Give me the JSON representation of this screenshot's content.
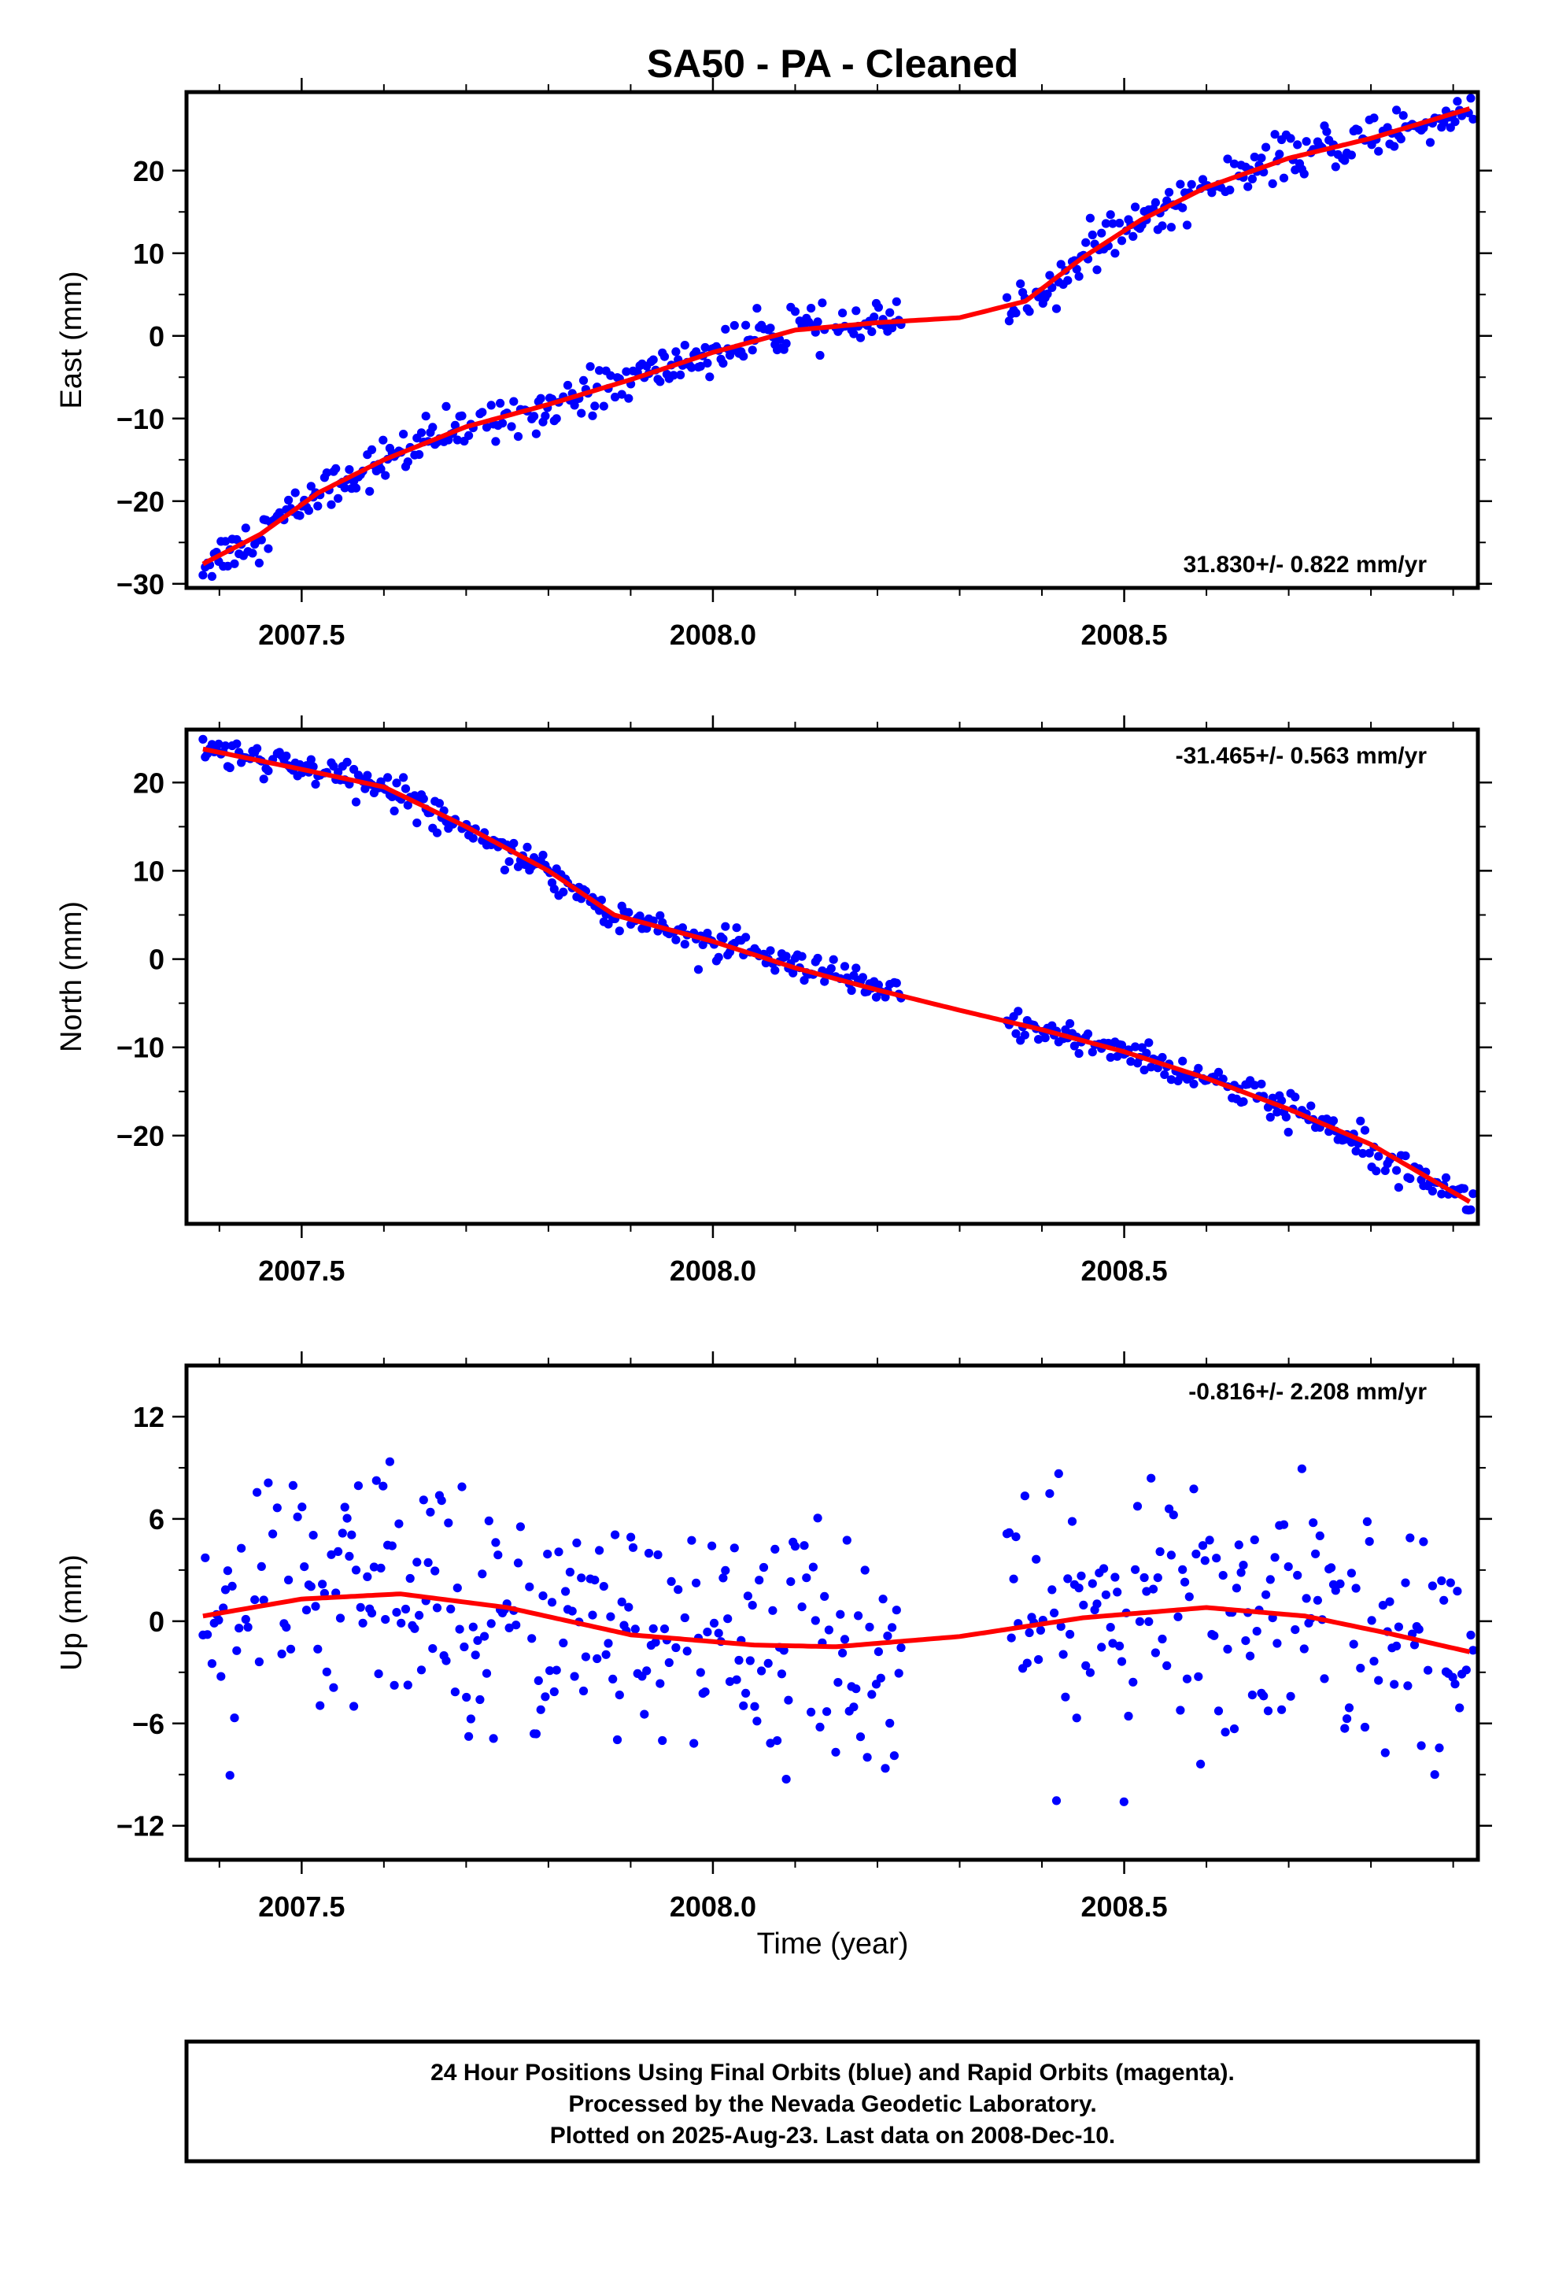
{
  "chart_data": {
    "title": "SA50  - PA - Cleaned",
    "type": "scatter",
    "xlabel": "Time (year)",
    "xlim": [
      2007.36,
      2008.93
    ],
    "xticks": [
      2007.5,
      2008.0,
      2008.5
    ],
    "xtick_labels": [
      "2007.5",
      "2008.0",
      "2008.5"
    ],
    "panels": [
      {
        "name": "east",
        "ylabel": "East (mm)",
        "ylim": [
          -30.5,
          29.5
        ],
        "yticks": [
          -30,
          -20,
          -10,
          0,
          10,
          20
        ],
        "ytick_labels": [
          "−30",
          "−20",
          "−10",
          "0",
          "10",
          "20"
        ],
        "rate_text": "31.830+/- 0.822 mm/yr",
        "rate_position": "bottom-right",
        "fit_x": [
          2007.38,
          2007.45,
          2007.52,
          2007.6,
          2007.7,
          2007.8,
          2007.9,
          2008.0,
          2008.1,
          2008.2,
          2008.3,
          2008.38,
          2008.45,
          2008.52,
          2008.6,
          2008.7,
          2008.8,
          2008.92
        ],
        "fit_y": [
          -27.6,
          -24,
          -19,
          -15,
          -11,
          -8.3,
          -5.3,
          -2,
          0.7,
          1.6,
          2.2,
          4.2,
          9.5,
          14,
          18,
          21.5,
          23.9,
          27.5
        ],
        "point_noise": 1.3,
        "gaps": [
          [
            2008.23,
            2008.355
          ]
        ]
      },
      {
        "name": "north",
        "ylabel": "North (mm)",
        "ylim": [
          -30,
          26
        ],
        "yticks": [
          -20,
          -10,
          0,
          10,
          20
        ],
        "ytick_labels": [
          "−20",
          "−10",
          "0",
          "10",
          "20"
        ],
        "rate_text": "-31.465+/- 0.563 mm/yr",
        "rate_position": "top-right",
        "fit_x": [
          2007.38,
          2007.5,
          2007.6,
          2007.7,
          2007.8,
          2007.88,
          2008.0,
          2008.1,
          2008.2,
          2008.3,
          2008.4,
          2008.5,
          2008.6,
          2008.7,
          2008.8,
          2008.92
        ],
        "fit_y": [
          23.8,
          21.5,
          19.5,
          15,
          10,
          5,
          2,
          -1,
          -3.5,
          -5.8,
          -8,
          -10.5,
          -13.5,
          -17,
          -21,
          -27.5
        ],
        "point_noise": 0.9,
        "gaps": [
          [
            2008.23,
            2008.355
          ]
        ]
      },
      {
        "name": "up",
        "ylabel": "Up (mm)",
        "ylim": [
          -14,
          15
        ],
        "yticks": [
          -12,
          -6,
          0,
          6,
          12
        ],
        "ytick_labels": [
          "−12",
          "−6",
          "0",
          "6",
          "12"
        ],
        "rate_text": "-0.816+/- 2.208 mm/yr",
        "rate_position": "top-right",
        "fit_x": [
          2007.38,
          2007.5,
          2007.62,
          2007.75,
          2007.9,
          2008.05,
          2008.15,
          2008.3,
          2008.45,
          2008.6,
          2008.72,
          2008.82,
          2008.92
        ],
        "fit_y": [
          0.3,
          1.3,
          1.6,
          0.8,
          -0.8,
          -1.4,
          -1.5,
          -0.9,
          0.2,
          0.8,
          0.3,
          -0.7,
          -1.8
        ],
        "point_noise": 3.5,
        "gaps": [
          [
            2008.23,
            2008.355
          ]
        ]
      }
    ],
    "series": [
      {
        "name": "Final Orbits",
        "color": "#0000ff",
        "marker": "dot"
      },
      {
        "name": "fit",
        "color": "#ff0000",
        "marker": "line"
      }
    ]
  },
  "footer": {
    "line1": "24 Hour Positions Using Final Orbits (blue) and Rapid Orbits (magenta).",
    "line2": "Processed by the Nevada Geodetic Laboratory.",
    "line3": "Plotted on 2025-Aug-23. Last data on 2008-Dec-10."
  }
}
